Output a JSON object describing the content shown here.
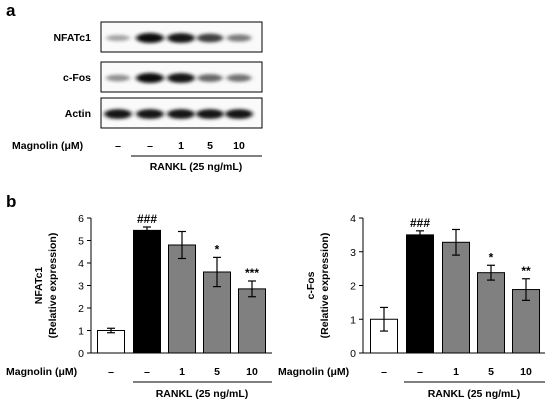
{
  "panel_a": {
    "letter": "a",
    "blots": [
      {
        "label": "NFATc1",
        "bands": [
          0.25,
          1.0,
          0.95,
          0.75,
          0.45
        ]
      },
      {
        "label": "c-Fos",
        "bands": [
          0.35,
          1.0,
          0.95,
          0.55,
          0.5
        ]
      },
      {
        "label": "Actin",
        "bands": [
          0.95,
          0.95,
          0.95,
          0.95,
          0.95
        ]
      }
    ],
    "treatment_label": "Magnolin (μM)",
    "lanes": [
      "–",
      "–",
      "1",
      "5",
      "10"
    ],
    "rankl_label": "RANKL (25 ng/mL)"
  },
  "panel_b": {
    "letter": "b",
    "treatment_label": "Magnolin (μM)",
    "rankl_label": "RANKL (25 ng/mL)"
  },
  "chart_data": [
    {
      "type": "bar",
      "ylabel_line1": "NFATc1",
      "ylabel_line2": "(Relative expression)",
      "categories": [
        "–",
        "–",
        "1",
        "5",
        "10"
      ],
      "values": [
        1.0,
        5.45,
        4.8,
        3.6,
        2.85
      ],
      "errors": [
        0.1,
        0.15,
        0.6,
        0.65,
        0.35
      ],
      "fills": [
        "#ffffff",
        "#000000",
        "#808080",
        "#808080",
        "#808080"
      ],
      "significance": [
        "",
        "###",
        "",
        "*",
        "***"
      ],
      "ylim": [
        0,
        6
      ],
      "yticks": [
        0,
        1,
        2,
        3,
        4,
        5,
        6
      ]
    },
    {
      "type": "bar",
      "ylabel_line1": "c-Fos",
      "ylabel_line2": "(Relative expression)",
      "categories": [
        "–",
        "–",
        "1",
        "5",
        "10"
      ],
      "values": [
        1.0,
        3.5,
        3.28,
        2.38,
        1.88
      ],
      "errors": [
        0.35,
        0.12,
        0.38,
        0.22,
        0.32
      ],
      "fills": [
        "#ffffff",
        "#000000",
        "#808080",
        "#808080",
        "#808080"
      ],
      "significance": [
        "",
        "###",
        "",
        "*",
        "**"
      ],
      "ylim": [
        0,
        4
      ],
      "yticks": [
        0,
        1,
        2,
        3,
        4
      ]
    }
  ]
}
